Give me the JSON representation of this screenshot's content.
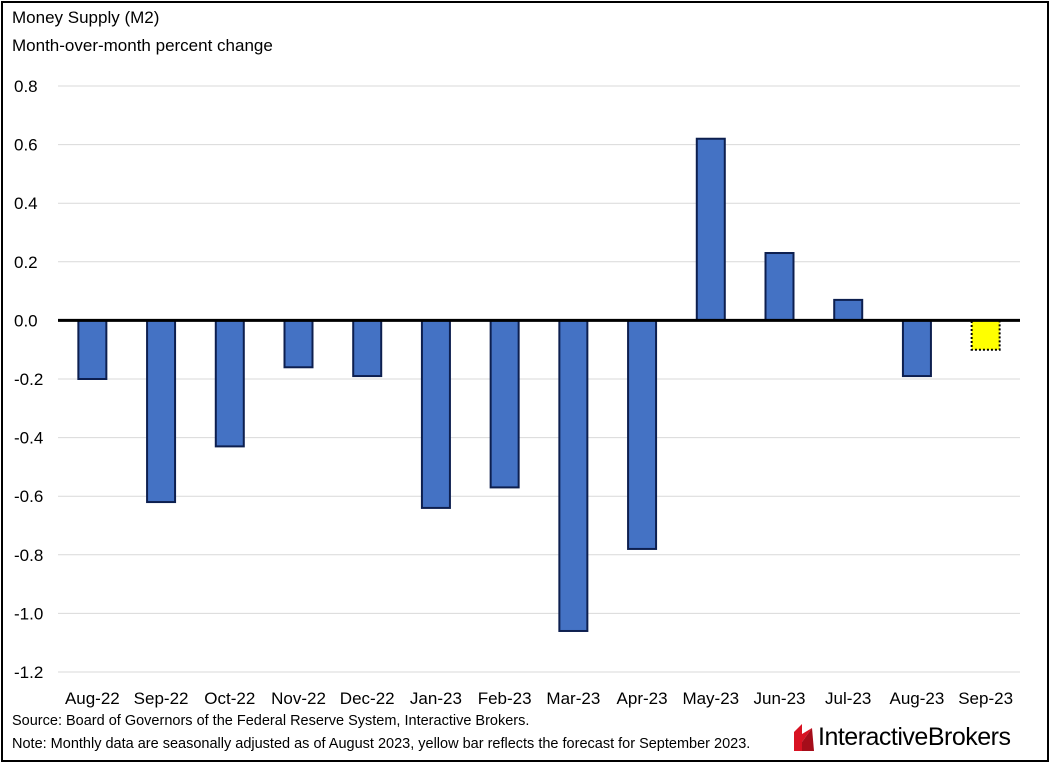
{
  "chart_data": {
    "type": "bar",
    "title": "Money Supply (M2)",
    "subtitle": "Month-over-month percent change",
    "categories": [
      "Aug-22",
      "Sep-22",
      "Oct-22",
      "Nov-22",
      "Dec-22",
      "Jan-23",
      "Feb-23",
      "Mar-23",
      "Apr-23",
      "May-23",
      "Jun-23",
      "Jul-23",
      "Aug-23",
      "Sep-23"
    ],
    "values": [
      -0.2,
      -0.62,
      -0.43,
      -0.16,
      -0.19,
      -0.64,
      -0.57,
      -1.06,
      -0.78,
      0.62,
      0.23,
      0.07,
      -0.19,
      -0.1
    ],
    "forecast_index": 13,
    "ylim": [
      -1.2,
      0.8
    ],
    "yticks": [
      "0.8",
      "0.6",
      "0.4",
      "0.2",
      "0.0",
      "-0.2",
      "-0.4",
      "-0.6",
      "-0.8",
      "-1.0",
      "-1.2"
    ],
    "ytick_values": [
      0.8,
      0.6,
      0.4,
      0.2,
      0.0,
      -0.2,
      -0.4,
      -0.6,
      -0.8,
      -1.0,
      -1.2
    ],
    "grid": true,
    "legend": "none",
    "colors": {
      "bar": "#4472c4",
      "bar_edge": "#0d1f4f",
      "forecast": "#ffff00",
      "zero_line": "#000000",
      "grid": "#d9d9d9"
    }
  },
  "footer": {
    "source": "Source: Board of Governors of the Federal Reserve System, Interactive Brokers.",
    "note": "Note: Monthly data are seasonally adjusted as of August 2023, yellow bar reflects the forecast for September 2023."
  },
  "logo": {
    "part1": "Interactive",
    "part2": "Brokers",
    "icon": "interactive-brokers-logo-icon",
    "color": "#d81222"
  }
}
